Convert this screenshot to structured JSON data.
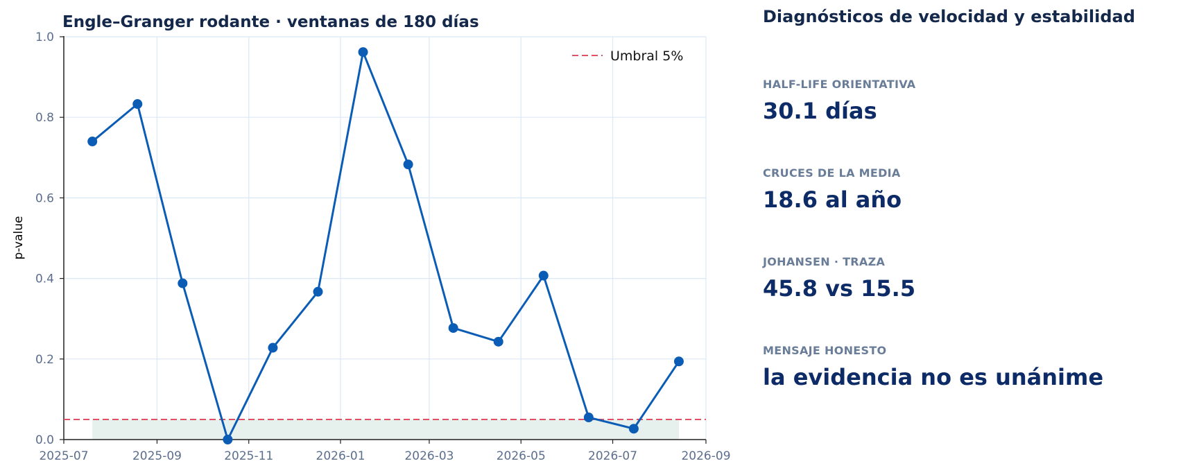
{
  "chart_data": {
    "type": "line",
    "title": "Engle–Granger rodante · ventanas de 180 días",
    "xlabel": "",
    "ylabel": "p-value",
    "x": [
      "2025-07-20",
      "2025-08-19",
      "2025-09-18",
      "2025-10-18",
      "2025-11-17",
      "2025-12-17",
      "2026-01-16",
      "2026-02-15",
      "2026-03-17",
      "2026-04-16",
      "2026-05-16",
      "2026-06-15",
      "2026-07-15",
      "2026-08-14"
    ],
    "series": [
      {
        "values": [
          0.74,
          0.833,
          0.388,
          0.0,
          0.228,
          0.367,
          0.962,
          0.683,
          0.277,
          0.243,
          0.407,
          0.055,
          0.027,
          0.194
        ]
      }
    ],
    "threshold": {
      "name": "Umbral 5%",
      "value": 0.05
    },
    "xlim": [
      "2025-07-01",
      "2026-09-01"
    ],
    "ylim": [
      0,
      1
    ],
    "xticks": [
      "2025-07",
      "2025-09",
      "2025-11",
      "2026-01",
      "2026-03",
      "2026-05",
      "2026-07",
      "2026-09"
    ],
    "yticks": [
      "0.0",
      "0.2",
      "0.4",
      "0.6",
      "0.8",
      "1.0"
    ],
    "grid": true,
    "legend_position": "top-right",
    "colors": {
      "line": "#0b5cb5",
      "threshold": "#e05263",
      "fill": "#e6f0ed",
      "grid": "#dbe8f5",
      "tick": "#5b6e8e"
    }
  },
  "panel": {
    "heading": "Diagnósticos de velocidad y estabilidad",
    "metrics": [
      {
        "label": "HALF-LIFE ORIENTATIVA",
        "value": "30.1 días"
      },
      {
        "label": "CRUCES DE LA MEDIA",
        "value": "18.6 al año"
      },
      {
        "label": "JOHANSEN · TRAZA",
        "value": "45.8 vs 15.5"
      },
      {
        "label": "MENSAJE HONESTO",
        "value": "la evidencia no es unánime"
      }
    ]
  }
}
